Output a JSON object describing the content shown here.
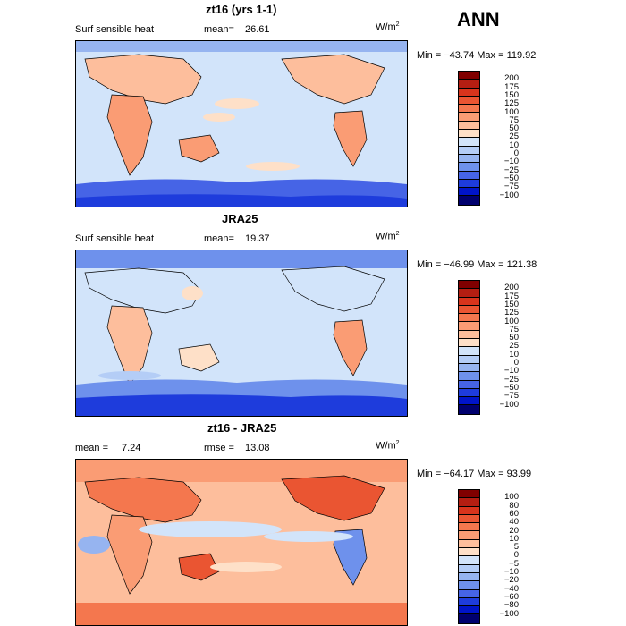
{
  "header": {
    "title": "ANN"
  },
  "panels": [
    {
      "title": "zt16 (yrs 1-1)",
      "left_label": "Surf sensible heat",
      "stat_label": "mean=",
      "stat_value": "26.61",
      "stat2_label": "",
      "stat2_value": "",
      "units": "W/m",
      "units_sup": "2",
      "minmax": "Min = −43.74  Max = 119.92",
      "levels": [
        "200",
        "175",
        "150",
        "125",
        "100",
        "75",
        "50",
        "25",
        "10",
        "0",
        "−10",
        "−25",
        "−50",
        "−75",
        "−100"
      ],
      "colors": [
        "#800000",
        "#b41e12",
        "#d8341c",
        "#ea5532",
        "#f4774e",
        "#fa9c74",
        "#fdbe9c",
        "#fee0c8",
        "#d2e4fa",
        "#b4cdf6",
        "#96b4f0",
        "#6e91ec",
        "#4664e6",
        "#1e3cdc",
        "#0014c8",
        "#00006e"
      ]
    },
    {
      "title": "JRA25",
      "left_label": "Surf sensible heat",
      "stat_label": "mean=",
      "stat_value": "19.37",
      "stat2_label": "",
      "stat2_value": "",
      "units": "W/m",
      "units_sup": "2",
      "minmax": "Min = −46.99  Max = 121.38",
      "levels": [
        "200",
        "175",
        "150",
        "125",
        "100",
        "75",
        "50",
        "25",
        "10",
        "0",
        "−10",
        "−25",
        "−50",
        "−75",
        "−100"
      ],
      "colors": [
        "#800000",
        "#b41e12",
        "#d8341c",
        "#ea5532",
        "#f4774e",
        "#fa9c74",
        "#fdbe9c",
        "#fee0c8",
        "#d2e4fa",
        "#b4cdf6",
        "#96b4f0",
        "#6e91ec",
        "#4664e6",
        "#1e3cdc",
        "#0014c8",
        "#00006e"
      ]
    },
    {
      "title": "zt16 - JRA25",
      "left_label": "mean =",
      "stat_label": "",
      "stat_value": "7.24",
      "stat2_label": "rmse =",
      "stat2_value": "13.08",
      "units": "W/m",
      "units_sup": "2",
      "minmax": "Min = −64.17  Max =   93.99",
      "levels": [
        "100",
        "80",
        "60",
        "40",
        "20",
        "10",
        "5",
        "0",
        "−5",
        "−10",
        "−20",
        "−40",
        "−60",
        "−80",
        "−100"
      ],
      "colors": [
        "#800000",
        "#b41e12",
        "#d8341c",
        "#ea5532",
        "#f4774e",
        "#fa9c74",
        "#fdbe9c",
        "#fee0c8",
        "#d2e4fa",
        "#b4cdf6",
        "#96b4f0",
        "#6e91ec",
        "#4664e6",
        "#1e3cdc",
        "#0014c8",
        "#00006e"
      ]
    }
  ],
  "chart_data": [
    {
      "type": "heatmap",
      "title": "zt16 (yrs 1-1)",
      "variable": "Surf sensible heat",
      "units": "W/m2",
      "mean": 26.61,
      "min": -43.74,
      "max": 119.92,
      "contour_levels": [
        -100,
        -75,
        -50,
        -25,
        -10,
        0,
        10,
        25,
        50,
        75,
        100,
        125,
        150,
        175,
        200
      ]
    },
    {
      "type": "heatmap",
      "title": "JRA25",
      "variable": "Surf sensible heat",
      "units": "W/m2",
      "mean": 19.37,
      "min": -46.99,
      "max": 121.38,
      "contour_levels": [
        -100,
        -75,
        -50,
        -25,
        -10,
        0,
        10,
        25,
        50,
        75,
        100,
        125,
        150,
        175,
        200
      ]
    },
    {
      "type": "heatmap",
      "title": "zt16 - JRA25",
      "units": "W/m2",
      "mean": 7.24,
      "rmse": 13.08,
      "min": -64.17,
      "max": 93.99,
      "contour_levels": [
        -100,
        -80,
        -60,
        -40,
        -20,
        -10,
        -5,
        0,
        5,
        10,
        20,
        40,
        60,
        80,
        100
      ]
    }
  ]
}
